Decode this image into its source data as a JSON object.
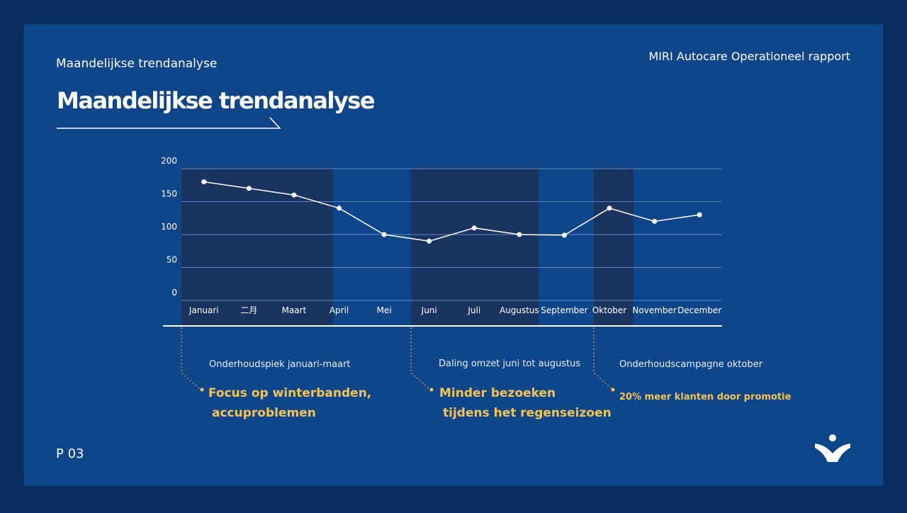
{
  "header": {
    "subtitle": "Maandelijkse trendanalyse",
    "title": "Maandelijkse trendanalyse",
    "report": "MIRI Autocare Operationeel rapport"
  },
  "chart_data": {
    "type": "line",
    "categories": [
      "Januari",
      "二月",
      "Maart",
      "April",
      "Mei",
      "Juni",
      "Juli",
      "Augustus",
      "September",
      "Oktober",
      "November",
      "December"
    ],
    "values": [
      180,
      170,
      160,
      140,
      100,
      90,
      110,
      100,
      99,
      140,
      120,
      130
    ],
    "color": "#ffffff",
    "ylim": [
      0,
      200
    ],
    "yticks": [
      0,
      50,
      100,
      150,
      200
    ],
    "grid": true
  },
  "annotations": [
    {
      "title": "Onderhoudspiek januari-maart",
      "text": "Focus op winterbanden,\naccuproblemen"
    },
    {
      "title": "Daling omzet juni tot augustus",
      "text": "Minder bezoeken\ntijdens het regenseizoen"
    },
    {
      "title": "Onderhoudscampagne oktober",
      "text": "20% meer klanten door promotie"
    }
  ],
  "page": "P 03"
}
